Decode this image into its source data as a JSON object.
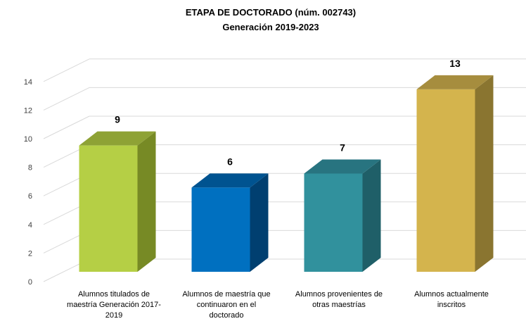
{
  "chart_data": {
    "type": "bar",
    "title": "ETAPA DE DOCTORADO (núm. 002743)",
    "subtitle": "Generación 2019-2023",
    "categories": [
      [
        "Alumnos titulados  de",
        "maestría Generación 2017-",
        "2019"
      ],
      [
        "Alumnos de maestría  que",
        "continuaron en el",
        "doctorado"
      ],
      [
        "Alumnos provenientes de",
        "otras maestrías"
      ],
      [
        "Alumnos actualmente",
        "inscritos"
      ]
    ],
    "values": [
      9,
      6,
      7,
      13
    ],
    "ylim": [
      0,
      14
    ],
    "yticks": [
      0,
      2,
      4,
      6,
      8,
      10,
      12,
      14
    ],
    "grid": true,
    "legend": "none",
    "colors": [
      {
        "front": "#B5CF45",
        "side": "#778A25",
        "top": "#8EA235"
      },
      {
        "front": "#0070C0",
        "side": "#003F70",
        "top": "#005390"
      },
      {
        "front": "#31919D",
        "side": "#1F5F68",
        "top": "#287480"
      },
      {
        "front": "#D4B44D",
        "side": "#8A7530",
        "top": "#A68D3E"
      }
    ]
  }
}
